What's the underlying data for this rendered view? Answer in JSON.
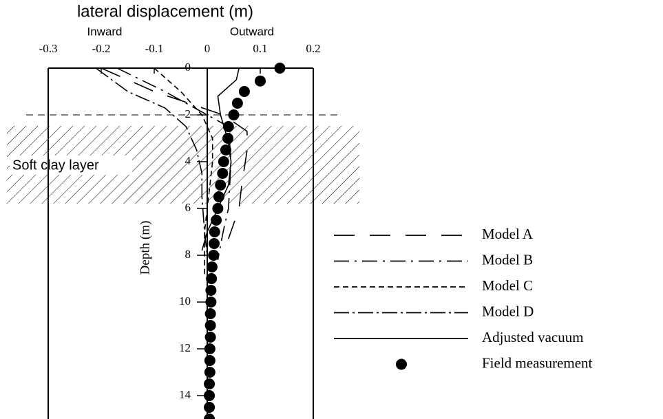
{
  "chart_data": {
    "type": "profile",
    "title": "lateral displacement (m)",
    "annotations": {
      "left": "Inward",
      "right": "Outward",
      "layer": "Soft clay layer"
    },
    "y_label": "Depth (m)",
    "xlim": [
      -0.3,
      0.2
    ],
    "xticks": [
      -0.3,
      -0.2,
      -0.1,
      0,
      0.1,
      0.2
    ],
    "ylim": [
      0,
      15
    ],
    "yticks": [
      0,
      2,
      4,
      6,
      8,
      10,
      12,
      14
    ],
    "legend": "lower right",
    "series": [
      {
        "name": "Model A",
        "color": "#000000",
        "style": "long-dash",
        "depth": [
          0,
          1,
          2,
          2.7,
          3.4,
          5,
          6,
          7.3
        ],
        "values": [
          -0.2,
          -0.1,
          0.03,
          0.075,
          0.076,
          0.065,
          0.06,
          0.04
        ]
      },
      {
        "name": "Model B",
        "color": "#000000",
        "style": "dash-dot",
        "depth": [
          0,
          1,
          2,
          2.5,
          4,
          6,
          7,
          8.2
        ],
        "values": [
          -0.17,
          -0.08,
          0.0,
          0.04,
          0.045,
          0.04,
          0.03,
          0.02
        ]
      },
      {
        "name": "Model C",
        "color": "#000000",
        "style": "short-dash",
        "depth": [
          0,
          1,
          2,
          3,
          4,
          5,
          6,
          7,
          8,
          8.8
        ],
        "values": [
          -0.1,
          -0.05,
          -0.01,
          0.01,
          0.01,
          0.005,
          0,
          -0.005,
          -0.005,
          -0.005
        ]
      },
      {
        "name": "Model D",
        "color": "#000000",
        "style": "long-dash-dot",
        "depth": [
          0,
          1,
          1.7,
          2.5,
          3.5,
          4.5,
          5.5,
          7,
          8
        ],
        "values": [
          -0.21,
          -0.15,
          -0.08,
          -0.04,
          -0.02,
          -0.01,
          -0.01,
          -0.005,
          0
        ]
      },
      {
        "name": "Adjusted vacuum",
        "color": "#000000",
        "style": "solid",
        "depth": [
          0,
          0.5,
          1.2,
          2,
          3,
          4,
          5,
          6,
          7,
          7.8
        ],
        "values": [
          0.06,
          0.055,
          0.02,
          0.025,
          0.038,
          0.045,
          0.04,
          0.02,
          0.0,
          -0.01
        ]
      },
      {
        "name": "Field measurement",
        "color": "#000000",
        "style": "dots",
        "depth": [
          0,
          0.55,
          1,
          1.5,
          2,
          2.5,
          3,
          3.5,
          4,
          4.5,
          5,
          5.5,
          6,
          6.5,
          7,
          7.5,
          8,
          8.5,
          9,
          9.5,
          10,
          10.5,
          11,
          11.5,
          12,
          12.5,
          13,
          13.5,
          14,
          14.5,
          15
        ],
        "values": [
          0.137,
          0.1,
          0.07,
          0.057,
          0.05,
          0.04,
          0.039,
          0.035,
          0.031,
          0.029,
          0.025,
          0.022,
          0.02,
          0.017,
          0.014,
          0.013,
          0.012,
          0.009,
          0.008,
          0.007,
          0.007,
          0.006,
          0.006,
          0.006,
          0.005,
          0.005,
          0.005,
          0.004,
          0.004,
          0.004,
          0.004
        ]
      }
    ]
  }
}
